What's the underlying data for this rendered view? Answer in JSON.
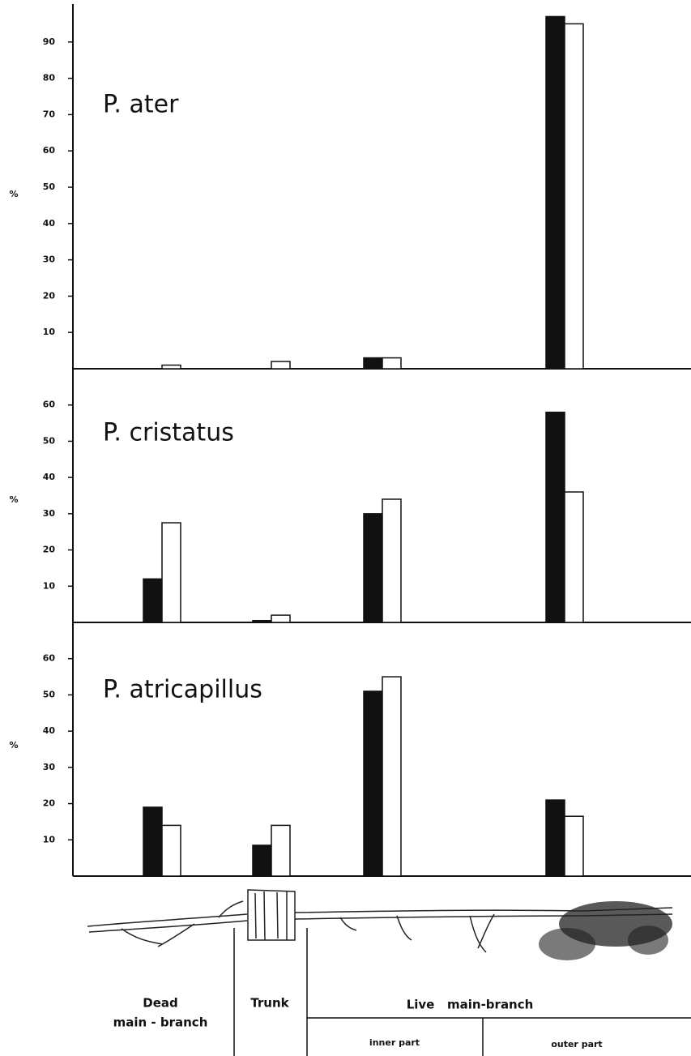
{
  "chart_data": [
    {
      "type": "bar",
      "title": "P. ater",
      "ylabel": "%",
      "categories": [
        null,
        null,
        null,
        null
      ],
      "series": [
        {
          "color": "#111111",
          "values": [
            0,
            0,
            3,
            97
          ]
        },
        {
          "color": "#ffffff",
          "values": [
            1,
            2,
            3,
            95
          ]
        }
      ],
      "ylim": [
        0,
        100
      ],
      "yticks": [
        10,
        20,
        30,
        40,
        50,
        60,
        70,
        80,
        90
      ]
    },
    {
      "type": "bar",
      "title": "P. cristatus",
      "ylabel": "%",
      "categories": [
        null,
        null,
        null,
        null
      ],
      "series": [
        {
          "color": "#111111",
          "values": [
            12,
            0.5,
            30,
            58
          ]
        },
        {
          "color": "#ffffff",
          "values": [
            27.5,
            2,
            34,
            36
          ]
        }
      ],
      "ylim": [
        0,
        70
      ],
      "yticks": [
        10,
        20,
        30,
        40,
        50,
        60
      ]
    },
    {
      "type": "bar",
      "title": "P. atricapillus",
      "ylabel": "%",
      "categories": [
        null,
        null,
        null,
        null
      ],
      "series": [
        {
          "color": "#111111",
          "values": [
            19,
            8.5,
            51,
            21
          ]
        },
        {
          "color": "#ffffff",
          "values": [
            14,
            14,
            55,
            16.5
          ]
        }
      ],
      "ylim": [
        0,
        70
      ],
      "yticks": [
        10,
        20,
        30,
        40,
        50,
        60
      ]
    }
  ],
  "habitat_key": {
    "dead": [
      "Dead",
      "main - branch"
    ],
    "trunk": "Trunk",
    "live": "Live   main-branch",
    "inner": "inner part",
    "outer": "outer part"
  }
}
